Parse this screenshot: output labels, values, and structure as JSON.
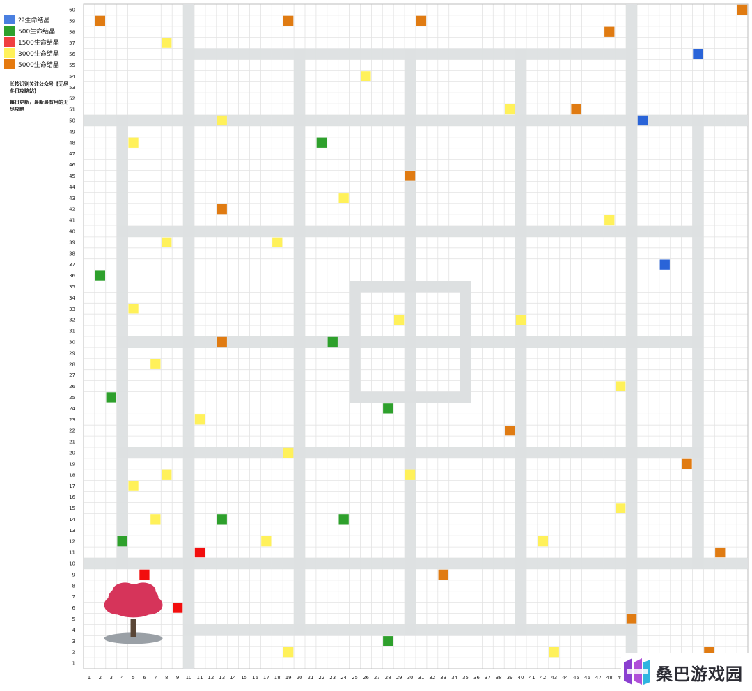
{
  "legend": [
    {
      "label": "??生命结晶",
      "color": "#4a7fe0"
    },
    {
      "label": "500生命结晶",
      "color": "#2ea02c"
    },
    {
      "label": "1500生命结晶",
      "color": "#f04040"
    },
    {
      "label": "3000生命结晶",
      "color": "#fff15a"
    },
    {
      "label": "5000生命结晶",
      "color": "#e57a0f"
    }
  ],
  "note1": "长按识别关注公众号【无尽冬日攻略站】",
  "note2": "每日更新，最新最有用的无尽攻略",
  "brand": "桑巴游戏园",
  "colors": {
    "grid_line": "#e3e3e3",
    "road": "#dde0e1",
    "blue": "#2a64d8",
    "green": "#2ea02c",
    "red": "#f20e0e",
    "yellow": "#fff15a",
    "orange": "#e07b12"
  },
  "axes": {
    "x_min": 1,
    "x_max": 60,
    "y_min": 1,
    "y_max": 60
  },
  "roads": {
    "horizontal": [
      {
        "y": 56,
        "x_from": 10,
        "x_to": 50
      },
      {
        "y": 50,
        "x_from": 1,
        "x_to": 60
      },
      {
        "y": 40,
        "x_from": 4,
        "x_to": 56
      },
      {
        "y": 30,
        "x_from": 4,
        "x_to": 56
      },
      {
        "y": 20,
        "x_from": 4,
        "x_to": 56
      },
      {
        "y": 10,
        "x_from": 1,
        "x_to": 60
      },
      {
        "y": 4,
        "x_from": 10,
        "x_to": 50
      }
    ],
    "vertical": [
      {
        "x": 10,
        "y_from": 1,
        "y_to": 60
      },
      {
        "x": 50,
        "y_from": 1,
        "y_to": 60
      },
      {
        "x": 4,
        "y_from": 10,
        "y_to": 50
      },
      {
        "x": 56,
        "y_from": 10,
        "y_to": 50
      },
      {
        "x": 20,
        "y_from": 4,
        "y_to": 56
      },
      {
        "x": 30,
        "y_from": 4,
        "y_to": 56
      },
      {
        "x": 40,
        "y_from": 4,
        "y_to": 56
      }
    ],
    "square": {
      "x_from": 25,
      "x_to": 35,
      "y_from": 25,
      "y_to": 35
    }
  },
  "markers": [
    {
      "x": 2,
      "y": 59,
      "type": "orange"
    },
    {
      "x": 19,
      "y": 59,
      "type": "orange"
    },
    {
      "x": 31,
      "y": 59,
      "type": "orange"
    },
    {
      "x": 60,
      "y": 60,
      "type": "orange"
    },
    {
      "x": 48,
      "y": 58,
      "type": "orange"
    },
    {
      "x": 8,
      "y": 57,
      "type": "yellow"
    },
    {
      "x": 56,
      "y": 56,
      "type": "blue"
    },
    {
      "x": 26,
      "y": 54,
      "type": "yellow"
    },
    {
      "x": 39,
      "y": 51,
      "type": "yellow"
    },
    {
      "x": 45,
      "y": 51,
      "type": "orange"
    },
    {
      "x": 13,
      "y": 50,
      "type": "yellow"
    },
    {
      "x": 51,
      "y": 50,
      "type": "blue"
    },
    {
      "x": 5,
      "y": 48,
      "type": "yellow"
    },
    {
      "x": 22,
      "y": 48,
      "type": "green"
    },
    {
      "x": 30,
      "y": 45,
      "type": "orange"
    },
    {
      "x": 24,
      "y": 43,
      "type": "yellow"
    },
    {
      "x": 13,
      "y": 42,
      "type": "orange"
    },
    {
      "x": 48,
      "y": 41,
      "type": "yellow"
    },
    {
      "x": 8,
      "y": 39,
      "type": "yellow"
    },
    {
      "x": 18,
      "y": 39,
      "type": "yellow"
    },
    {
      "x": 53,
      "y": 37,
      "type": "blue"
    },
    {
      "x": 2,
      "y": 36,
      "type": "green"
    },
    {
      "x": 5,
      "y": 33,
      "type": "yellow"
    },
    {
      "x": 29,
      "y": 32,
      "type": "yellow"
    },
    {
      "x": 40,
      "y": 32,
      "type": "yellow"
    },
    {
      "x": 13,
      "y": 30,
      "type": "orange"
    },
    {
      "x": 23,
      "y": 30,
      "type": "green"
    },
    {
      "x": 7,
      "y": 28,
      "type": "yellow"
    },
    {
      "x": 49,
      "y": 26,
      "type": "yellow"
    },
    {
      "x": 3,
      "y": 25,
      "type": "green"
    },
    {
      "x": 28,
      "y": 24,
      "type": "green"
    },
    {
      "x": 11,
      "y": 23,
      "type": "yellow"
    },
    {
      "x": 39,
      "y": 22,
      "type": "orange"
    },
    {
      "x": 19,
      "y": 20,
      "type": "yellow"
    },
    {
      "x": 55,
      "y": 19,
      "type": "orange"
    },
    {
      "x": 8,
      "y": 18,
      "type": "yellow"
    },
    {
      "x": 30,
      "y": 18,
      "type": "yellow"
    },
    {
      "x": 5,
      "y": 17,
      "type": "yellow"
    },
    {
      "x": 49,
      "y": 15,
      "type": "yellow"
    },
    {
      "x": 7,
      "y": 14,
      "type": "yellow"
    },
    {
      "x": 13,
      "y": 14,
      "type": "green"
    },
    {
      "x": 24,
      "y": 14,
      "type": "green"
    },
    {
      "x": 4,
      "y": 12,
      "type": "green"
    },
    {
      "x": 17,
      "y": 12,
      "type": "yellow"
    },
    {
      "x": 42,
      "y": 12,
      "type": "yellow"
    },
    {
      "x": 11,
      "y": 11,
      "type": "red"
    },
    {
      "x": 58,
      "y": 11,
      "type": "orange"
    },
    {
      "x": 6,
      "y": 9,
      "type": "red"
    },
    {
      "x": 33,
      "y": 9,
      "type": "orange"
    },
    {
      "x": 9,
      "y": 6,
      "type": "red"
    },
    {
      "x": 50,
      "y": 5,
      "type": "orange"
    },
    {
      "x": 28,
      "y": 3,
      "type": "green"
    },
    {
      "x": 19,
      "y": 2,
      "type": "yellow"
    },
    {
      "x": 43,
      "y": 2,
      "type": "yellow"
    },
    {
      "x": 57,
      "y": 2,
      "type": "orange"
    }
  ],
  "tree": {
    "x": 5,
    "y": 4
  }
}
